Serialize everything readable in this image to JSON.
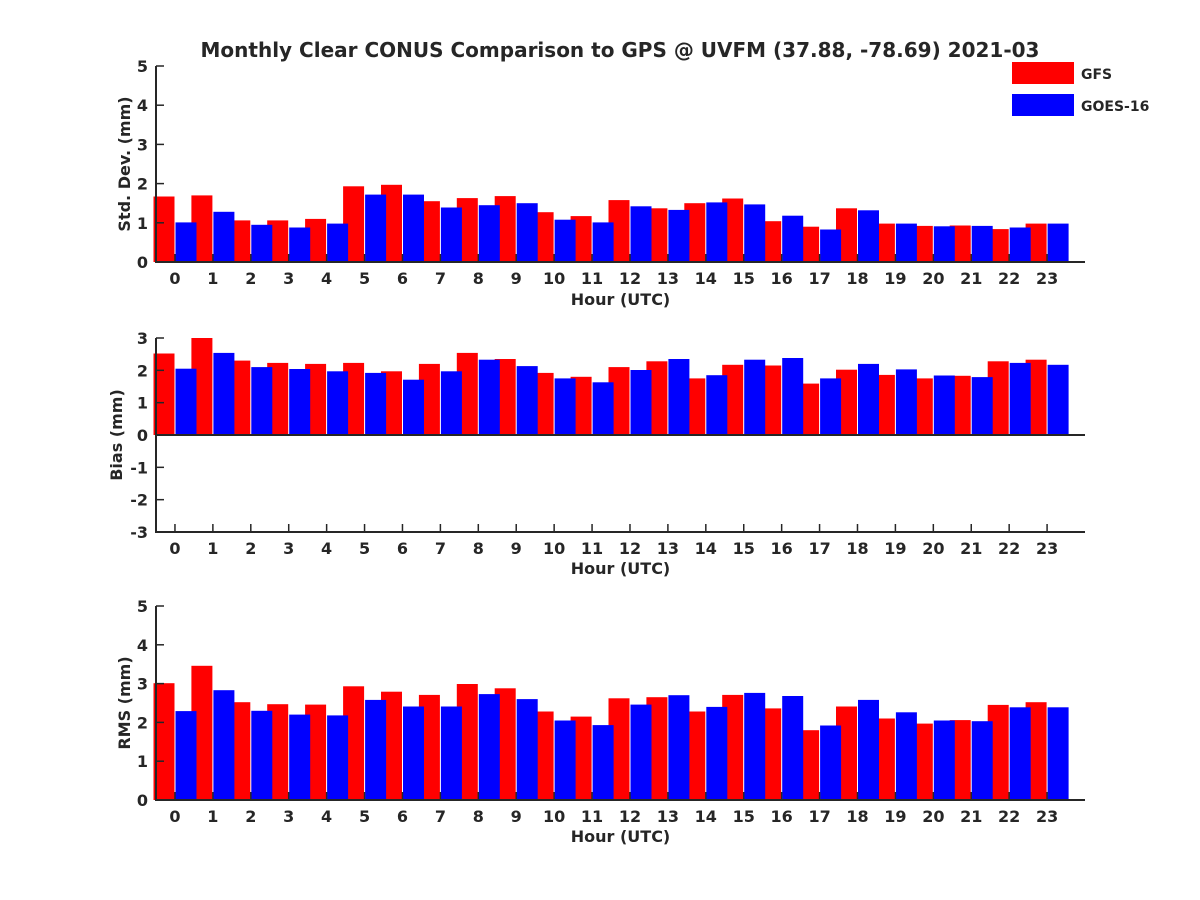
{
  "chart_data": {
    "type": "bar",
    "title": "Monthly Clear CONUS Comparison to GPS @ UVFM (37.88, -78.69) 2021-03",
    "legend": {
      "placement": "top-right",
      "entries": [
        {
          "name": "GFS",
          "color": "#ff0000"
        },
        {
          "name": "GOES-16",
          "color": "#0000ff"
        }
      ]
    },
    "categories": [
      "0",
      "1",
      "2",
      "3",
      "4",
      "5",
      "6",
      "7",
      "8",
      "9",
      "10",
      "11",
      "12",
      "13",
      "14",
      "15",
      "16",
      "17",
      "18",
      "19",
      "20",
      "21",
      "22",
      "23"
    ],
    "panels": [
      {
        "ylabel": "Std. Dev. (mm)",
        "xlabel": "Hour (UTC)",
        "ylim": [
          0,
          5
        ],
        "yticks": [
          0,
          1,
          2,
          3,
          4,
          5
        ],
        "series": [
          {
            "name": "GFS",
            "values": [
              1.67,
              1.7,
              1.06,
              1.06,
              1.1,
              1.93,
              1.97,
              1.55,
              1.63,
              1.68,
              1.27,
              1.17,
              1.58,
              1.37,
              1.5,
              1.62,
              1.04,
              0.9,
              1.37,
              0.98,
              0.92,
              0.93,
              0.84,
              0.98
            ]
          },
          {
            "name": "GOES-16",
            "values": [
              1.01,
              1.28,
              0.95,
              0.88,
              0.98,
              1.72,
              1.72,
              1.39,
              1.45,
              1.5,
              1.08,
              1.01,
              1.42,
              1.33,
              1.52,
              1.47,
              1.18,
              0.83,
              1.32,
              0.98,
              0.91,
              0.92,
              0.88,
              0.98
            ]
          }
        ]
      },
      {
        "ylabel": "Bias (mm)",
        "xlabel": "Hour (UTC)",
        "ylim": [
          -3,
          3
        ],
        "yticks": [
          -3,
          -2,
          -1,
          0,
          1,
          2,
          3
        ],
        "series": [
          {
            "name": "GFS",
            "values": [
              2.52,
              3.0,
              2.3,
              2.23,
              2.2,
              2.23,
              1.97,
              2.2,
              2.54,
              2.35,
              1.92,
              1.8,
              2.1,
              2.28,
              1.75,
              2.17,
              2.15,
              1.59,
              2.02,
              1.86,
              1.75,
              1.83,
              2.28,
              2.33
            ]
          },
          {
            "name": "GOES-16",
            "values": [
              2.05,
              2.54,
              2.1,
              2.04,
              1.97,
              1.92,
              1.71,
              1.97,
              2.33,
              2.13,
              1.75,
              1.63,
              2.01,
              2.35,
              1.85,
              2.33,
              2.38,
              1.75,
              2.2,
              2.03,
              1.84,
              1.79,
              2.23,
              2.17
            ]
          }
        ]
      },
      {
        "ylabel": "RMS (mm)",
        "xlabel": "Hour (UTC)",
        "ylim": [
          0,
          5
        ],
        "yticks": [
          0,
          1,
          2,
          3,
          4,
          5
        ],
        "series": [
          {
            "name": "GFS",
            "values": [
              3.01,
              3.46,
              2.52,
              2.47,
              2.46,
              2.93,
              2.79,
              2.71,
              2.99,
              2.88,
              2.28,
              2.15,
              2.62,
              2.65,
              2.28,
              2.71,
              2.36,
              1.8,
              2.41,
              2.1,
              1.97,
              2.06,
              2.45,
              2.52
            ]
          },
          {
            "name": "GOES-16",
            "values": [
              2.29,
              2.83,
              2.3,
              2.2,
              2.18,
              2.58,
              2.41,
              2.41,
              2.73,
              2.6,
              2.05,
              1.93,
              2.46,
              2.7,
              2.4,
              2.76,
              2.68,
              1.92,
              2.58,
              2.26,
              2.05,
              2.03,
              2.39,
              2.39
            ]
          }
        ]
      }
    ]
  }
}
